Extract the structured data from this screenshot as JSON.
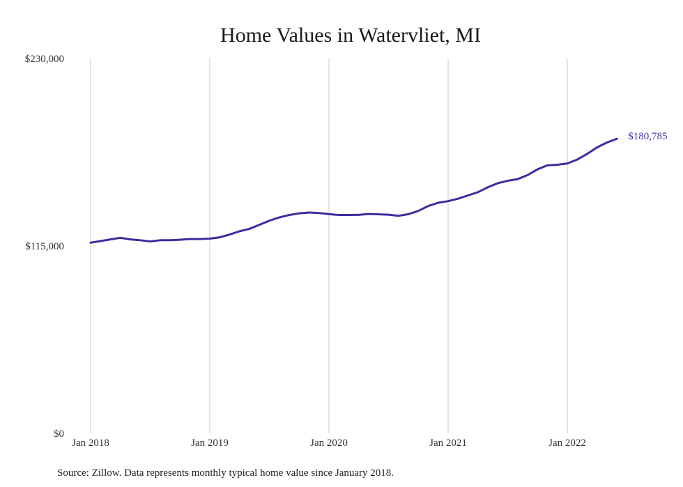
{
  "chart_data": {
    "type": "line",
    "title": "Home Values in Watervliet, MI",
    "xlabel": "",
    "ylabel": "",
    "ylim": [
      0,
      230000
    ],
    "y_ticks": [
      "$0",
      "$115,000",
      "$230,000"
    ],
    "y_tick_values": [
      0,
      115000,
      230000
    ],
    "x_ticks": [
      "Jan 2018",
      "Jan 2019",
      "Jan 2020",
      "Jan 2021",
      "Jan 2022"
    ],
    "grid": "vertical",
    "line_color": "#3a2e9e",
    "end_label": "$180,785",
    "series": [
      {
        "values": [
          117000,
          118000,
          119000,
          120000,
          119000,
          118500,
          117800,
          118500,
          118500,
          118800,
          119200,
          119200,
          119500,
          120300,
          122000,
          124000,
          125500,
          128000,
          130500,
          132500,
          134000,
          135000,
          135500,
          135200,
          134500,
          134000,
          134000,
          134100,
          134600,
          134400,
          134200,
          133500,
          134500,
          136500,
          139500,
          141500,
          142500,
          144000,
          146000,
          148000,
          151000,
          153500,
          155000,
          156000,
          158500,
          162000,
          164500,
          164800,
          165600,
          168000,
          171500,
          175500,
          178500,
          180785
        ]
      }
    ]
  },
  "footer": {
    "source": "Source: Zillow. Data represents monthly typical home value since January 2018."
  }
}
